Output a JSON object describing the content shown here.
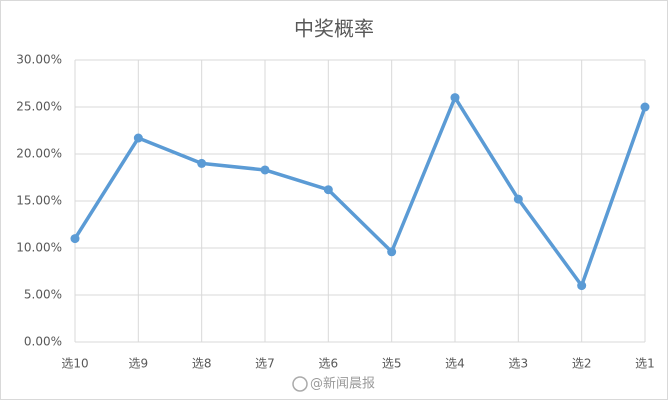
{
  "chart_data": {
    "type": "line",
    "title": "中奖概率",
    "categories": [
      "选10",
      "选9",
      "选8",
      "选7",
      "选6",
      "选5",
      "选4",
      "选3",
      "选2",
      "选1"
    ],
    "series": [
      {
        "color": "#5b9bd5",
        "values": [
          11.0,
          21.7,
          19.0,
          18.3,
          16.2,
          9.6,
          26.0,
          15.2,
          6.0,
          25.0
        ]
      }
    ],
    "ylim": [
      0,
      30
    ],
    "yticks": [
      {
        "value": 0,
        "label": "0.00%"
      },
      {
        "value": 5,
        "label": "5.00%"
      },
      {
        "value": 10,
        "label": "10.00%"
      },
      {
        "value": 15,
        "label": "15.00%"
      },
      {
        "value": 20,
        "label": "20.00%"
      },
      {
        "value": 25,
        "label": "25.00%"
      },
      {
        "value": 30,
        "label": "30.00%"
      }
    ],
    "grid": true,
    "watermark": "@新闻晨报"
  }
}
